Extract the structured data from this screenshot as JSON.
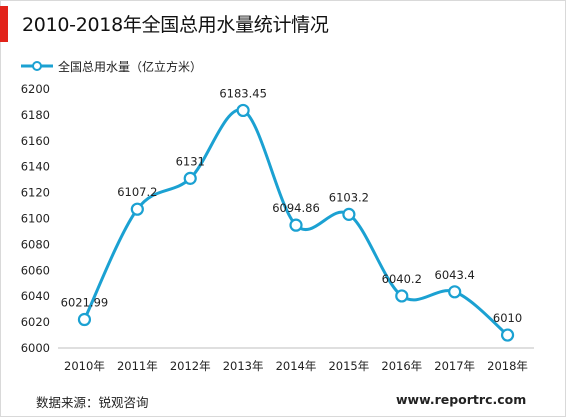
{
  "title": "2010-2018年全国总用水量统计情况",
  "footer": {
    "source": "数据来源：锐观咨询",
    "website": "www.reportrc.com"
  },
  "colors": {
    "accent": "#e2231a",
    "series": "#1ba1d2",
    "axis_text": "#222222"
  },
  "chart_data": {
    "type": "line",
    "title": "2010-2018年全国总用水量统计情况",
    "xlabel": "",
    "ylabel": "",
    "categories": [
      "2010年",
      "2011年",
      "2012年",
      "2013年",
      "2014年",
      "2015年",
      "2016年",
      "2017年",
      "2018年"
    ],
    "series": [
      {
        "name": "全国总用水量（亿立方米）",
        "values": [
          6021.99,
          6107.2,
          6131,
          6183.45,
          6094.86,
          6103.2,
          6040.2,
          6043.4,
          6010
        ],
        "labels": [
          "6021.99",
          "6107.2",
          "6131",
          "6183.45",
          "6094.86",
          "6103.2",
          "6040.2",
          "6043.4",
          "6010"
        ]
      }
    ],
    "ylim": [
      6000,
      6200
    ],
    "yticks": [
      6000,
      6020,
      6040,
      6060,
      6080,
      6100,
      6120,
      6140,
      6160,
      6180,
      6200
    ],
    "grid": false,
    "smooth": true,
    "legend": "top-left"
  }
}
